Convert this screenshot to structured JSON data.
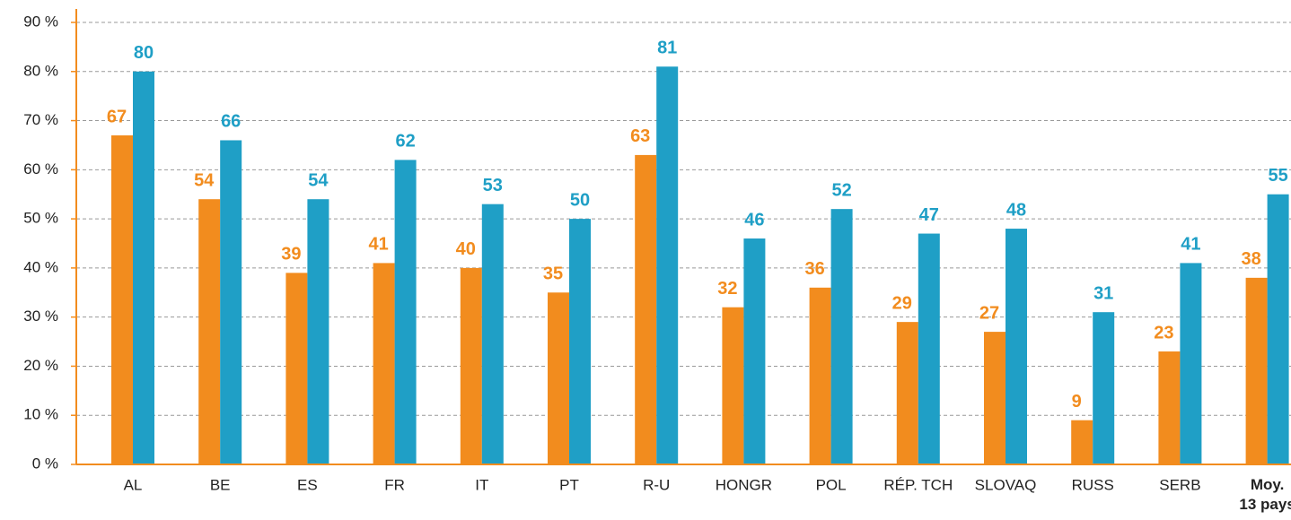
{
  "chart_data": {
    "type": "bar",
    "categories": [
      "AL",
      "BE",
      "ES",
      "FR",
      "IT",
      "PT",
      "R-U",
      "HONGR",
      "POL",
      "RÉP. TCH",
      "SLOVAQ",
      "RUSS",
      "SERB",
      "Moy.\n13 pays"
    ],
    "series": [
      {
        "color": "#f28c1e",
        "values": [
          67,
          54,
          39,
          41,
          40,
          35,
          63,
          32,
          36,
          29,
          27,
          9,
          23,
          38
        ]
      },
      {
        "color": "#1f9fc6",
        "values": [
          80,
          66,
          54,
          62,
          53,
          50,
          81,
          46,
          52,
          47,
          48,
          31,
          41,
          55
        ]
      }
    ],
    "ylim": [
      0,
      90
    ],
    "yticks": [
      {
        "value": 0,
        "label": "0 %"
      },
      {
        "value": 10,
        "label": "10 %"
      },
      {
        "value": 20,
        "label": "20 %"
      },
      {
        "value": 30,
        "label": "30 %"
      },
      {
        "value": 40,
        "label": "40 %"
      },
      {
        "value": 50,
        "label": "50 %"
      },
      {
        "value": 60,
        "label": "60 %"
      },
      {
        "value": 70,
        "label": "70 %"
      },
      {
        "value": 80,
        "label": "80 %"
      },
      {
        "value": 90,
        "label": "90 %"
      }
    ],
    "grid": true
  }
}
